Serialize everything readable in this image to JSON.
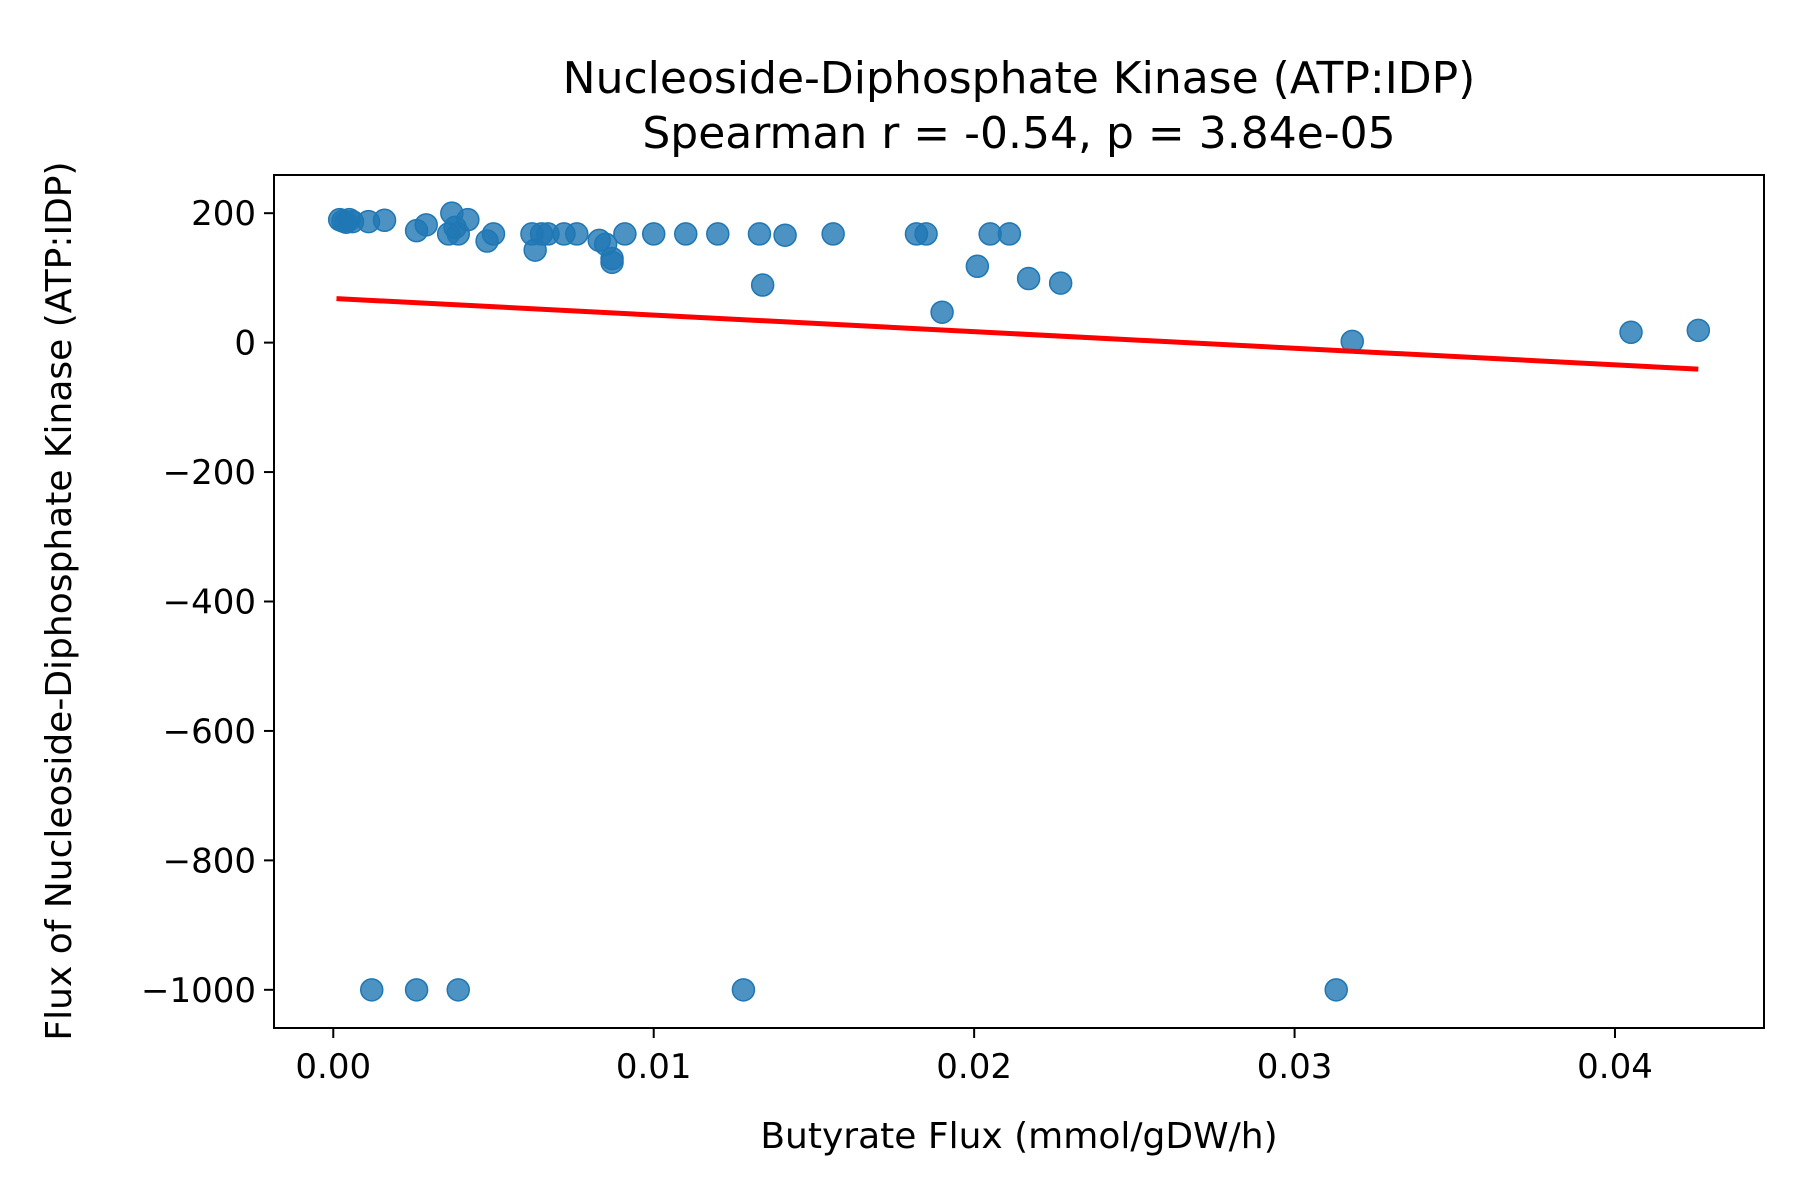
{
  "chart_data": {
    "type": "scatter",
    "title": "Nucleoside-Diphosphate Kinase (ATP:IDP)",
    "subtitle": "Spearman r = -0.54, p = 3.84e-05",
    "xlabel": "Butyrate Flux (mmol/gDW/h)",
    "ylabel": "Flux of Nucleoside-Diphosphate Kinase (ATP:IDP)",
    "xlim": [
      -0.00185,
      0.04465
    ],
    "ylim": [
      -1059,
      259
    ],
    "x_ticks": [
      0.0,
      0.01,
      0.02,
      0.03,
      0.04
    ],
    "x_tick_labels": [
      "0.00",
      "0.01",
      "0.02",
      "0.03",
      "0.04"
    ],
    "y_ticks": [
      200,
      0,
      -200,
      -400,
      -600,
      -800,
      -1000
    ],
    "y_tick_labels": [
      "200",
      "0",
      "−200",
      "−400",
      "−600",
      "−800",
      "−1000"
    ],
    "grid": false,
    "point_color": "#1f77b4",
    "line_color": "#ff0000",
    "fit_line": {
      "x": [
        0.0001,
        0.0426
      ],
      "y": [
        68,
        -41
      ]
    },
    "points": [
      {
        "x": 0.0002,
        "y": 190
      },
      {
        "x": 0.0003,
        "y": 188
      },
      {
        "x": 0.0004,
        "y": 186
      },
      {
        "x": 0.0005,
        "y": 190
      },
      {
        "x": 0.0006,
        "y": 187
      },
      {
        "x": 0.0011,
        "y": 187
      },
      {
        "x": 0.0016,
        "y": 189
      },
      {
        "x": 0.0026,
        "y": 173
      },
      {
        "x": 0.0029,
        "y": 182
      },
      {
        "x": 0.0037,
        "y": 200
      },
      {
        "x": 0.0036,
        "y": 168
      },
      {
        "x": 0.0039,
        "y": 168
      },
      {
        "x": 0.0038,
        "y": 178
      },
      {
        "x": 0.0042,
        "y": 190
      },
      {
        "x": 0.0048,
        "y": 157
      },
      {
        "x": 0.005,
        "y": 168
      },
      {
        "x": 0.0062,
        "y": 168
      },
      {
        "x": 0.0063,
        "y": 143
      },
      {
        "x": 0.0065,
        "y": 168
      },
      {
        "x": 0.0067,
        "y": 168
      },
      {
        "x": 0.0072,
        "y": 168
      },
      {
        "x": 0.0076,
        "y": 168
      },
      {
        "x": 0.0083,
        "y": 158
      },
      {
        "x": 0.0085,
        "y": 152
      },
      {
        "x": 0.0087,
        "y": 124
      },
      {
        "x": 0.0087,
        "y": 130
      },
      {
        "x": 0.0091,
        "y": 168
      },
      {
        "x": 0.01,
        "y": 168
      },
      {
        "x": 0.011,
        "y": 168
      },
      {
        "x": 0.012,
        "y": 168
      },
      {
        "x": 0.0133,
        "y": 168
      },
      {
        "x": 0.0134,
        "y": 89
      },
      {
        "x": 0.0141,
        "y": 166
      },
      {
        "x": 0.0156,
        "y": 168
      },
      {
        "x": 0.0182,
        "y": 168
      },
      {
        "x": 0.0185,
        "y": 168
      },
      {
        "x": 0.019,
        "y": 47
      },
      {
        "x": 0.0201,
        "y": 118
      },
      {
        "x": 0.0205,
        "y": 168
      },
      {
        "x": 0.0211,
        "y": 168
      },
      {
        "x": 0.0217,
        "y": 99
      },
      {
        "x": 0.0227,
        "y": 92
      },
      {
        "x": 0.0318,
        "y": 2
      },
      {
        "x": 0.0405,
        "y": 16
      },
      {
        "x": 0.0426,
        "y": 19
      },
      {
        "x": 0.0012,
        "y": -1000
      },
      {
        "x": 0.0026,
        "y": -1000
      },
      {
        "x": 0.0039,
        "y": -1000
      },
      {
        "x": 0.0128,
        "y": -1000
      },
      {
        "x": 0.0313,
        "y": -1000
      }
    ]
  }
}
